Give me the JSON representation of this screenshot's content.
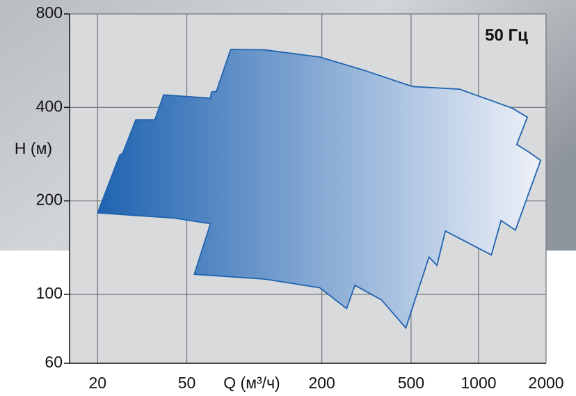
{
  "chart_data": {
    "type": "area-region",
    "annotation": "50 Гц",
    "y_label": "H (м)",
    "x_label": "Q (м³/ч)",
    "xscale": "log",
    "yscale": "log",
    "grid": true,
    "xlim": [
      15,
      2000
    ],
    "xticks": [
      20,
      50,
      200,
      500,
      1000,
      2000
    ],
    "ylim": [
      60,
      800
    ],
    "yticks": [
      60,
      100,
      200,
      400,
      800
    ],
    "x": [
      20,
      25.1,
      25.9,
      29.6,
      36.0,
      39.4,
      63.7,
      64.3,
      67.8,
      78.4,
      111,
      196,
      303,
      508,
      822,
      1410,
      1650,
      1480,
      1680,
      1890,
      1460,
      1260,
      1140,
      711,
      652,
      601,
      474,
      369,
      281,
      258,
      196,
      111,
      54.0,
      63.7,
      44.0,
      20
    ],
    "series": [
      {
        "color": "#1f63b0",
        "values": [
          183,
          281,
          285,
          365,
          365,
          439,
          428,
          448,
          451,
          615,
          613,
          581,
          529,
          467,
          458,
          398,
          372,
          304,
          287,
          270,
          161,
          173,
          134,
          160,
          124,
          132,
          78,
          96,
          107,
          90,
          105,
          112,
          116,
          169,
          176,
          183
        ]
      }
    ]
  }
}
